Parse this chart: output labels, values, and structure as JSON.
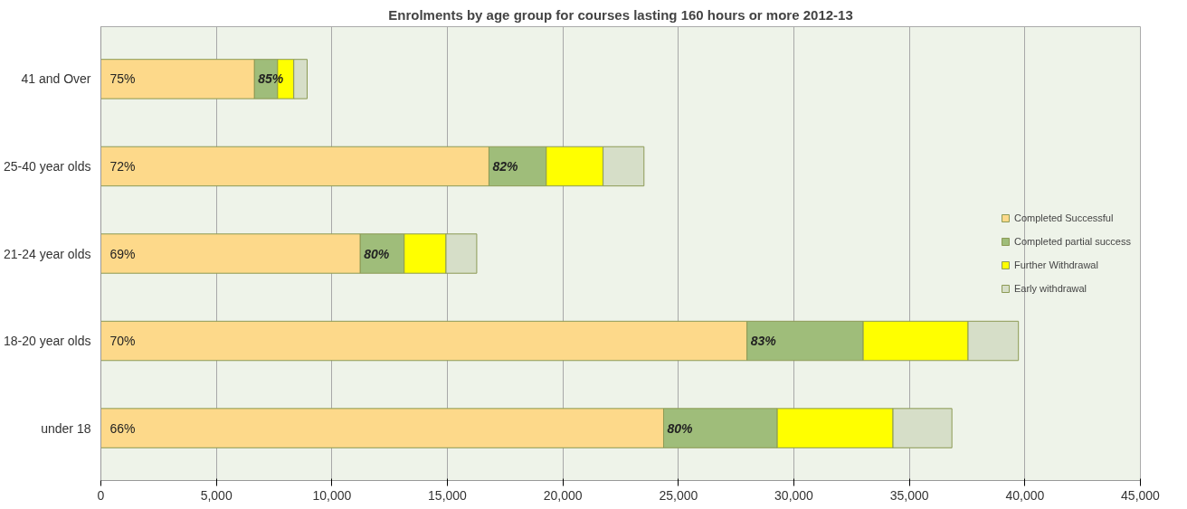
{
  "chart_data": {
    "type": "bar",
    "orientation": "horizontal",
    "stacked": true,
    "title": "Enrolments by age group for courses lasting 160 hours or more 2012-13",
    "categories": [
      "41 and Over",
      "25-40 year olds",
      "21-24 year olds",
      "18-20 year olds",
      "under 18"
    ],
    "series": [
      {
        "name": "Completed Successful",
        "color": "#fdd98a",
        "values": [
          6650,
          16800,
          11230,
          27970,
          24360
        ]
      },
      {
        "name": "Completed partial success",
        "color": "#9fbd7a",
        "values": [
          1000,
          2480,
          1900,
          5030,
          4920
        ]
      },
      {
        "name": "Further Withdrawal",
        "color": "#ffff00",
        "values": [
          700,
          2460,
          1810,
          4540,
          5010
        ]
      },
      {
        "name": "Early withdrawal",
        "color": "#d6dec8",
        "values": [
          580,
          1770,
          1330,
          2180,
          2550
        ]
      }
    ],
    "xlim": [
      0,
      45000
    ],
    "xticks": [
      {
        "value": 0,
        "label": "0"
      },
      {
        "value": 5000,
        "label": "5,000"
      },
      {
        "value": 10000,
        "label": "10,000"
      },
      {
        "value": 15000,
        "label": "15,000"
      },
      {
        "value": 20000,
        "label": "20,000"
      },
      {
        "value": 25000,
        "label": "25,000"
      },
      {
        "value": 30000,
        "label": "30,000"
      },
      {
        "value": 35000,
        "label": "35,000"
      },
      {
        "value": 40000,
        "label": "40,000"
      },
      {
        "value": 45000,
        "label": "45,000"
      }
    ],
    "annotations": [
      {
        "text": "75%",
        "x": 0,
        "y": "41 and Over"
      },
      {
        "text": "72%",
        "x": 0,
        "y": "25-40 year olds"
      },
      {
        "text": "69%",
        "x": 0,
        "y": "21-24 year olds"
      },
      {
        "text": "70%",
        "x": 0,
        "y": "18-20 year olds"
      },
      {
        "text": "66%",
        "x": 0,
        "y": "under 18"
      },
      {
        "text": "85%",
        "x": 6650,
        "y": "41 and Over"
      },
      {
        "text": "82%",
        "x": 16800,
        "y": "25-40 year olds"
      },
      {
        "text": "80%",
        "x": 11230,
        "y": "21-24 year olds"
      },
      {
        "text": "83%",
        "x": 27970,
        "y": "18-20 year olds"
      },
      {
        "text": "80%",
        "x": 24360,
        "y": "under 18"
      }
    ],
    "grid": "x",
    "legend": "right"
  }
}
